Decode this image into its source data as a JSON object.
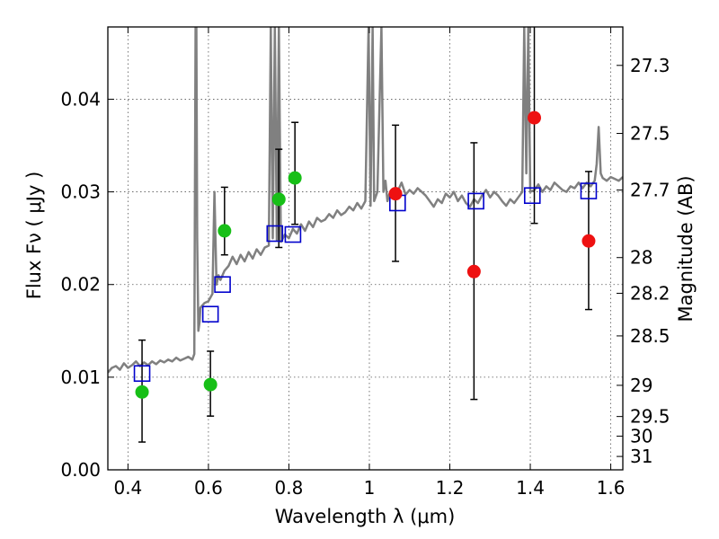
{
  "chart_data": {
    "type": "scatter",
    "xlabel": "Wavelength  λ (μm)",
    "ylabel": "Flux  Fν  ( μJy )",
    "ylabel_right": "Magnitude (AB)",
    "xlim": [
      0.35,
      1.63
    ],
    "ylim": [
      0.0,
      0.0478
    ],
    "x_ticks": [
      0.4,
      0.6,
      0.8,
      1.0,
      1.2,
      1.4,
      1.6
    ],
    "x_tick_labels": [
      "0.4",
      "0.6",
      "0.8",
      "1",
      "1.2",
      "1.4",
      "1.6"
    ],
    "y_ticks": [
      0.0,
      0.01,
      0.02,
      0.03,
      0.04
    ],
    "y_tick_labels": [
      "0.00",
      "0.01",
      "0.02",
      "0.03",
      "0.04"
    ],
    "mag_ticks": [
      27.3,
      27.5,
      27.7,
      28,
      28.2,
      28.5,
      29,
      29.5,
      30,
      31
    ],
    "mag_tick_labels": [
      "27.3",
      "27.5",
      "27.7",
      "28",
      "28.2",
      "28.5",
      "29",
      "29.5",
      "30",
      "31"
    ],
    "grid": true,
    "colors": {
      "model": "#808080",
      "model_photometry": "#0000cc",
      "green_points": "#17bf17",
      "red_points": "#ee1111",
      "errorbar": "#000000",
      "grid": "#555555"
    },
    "series": [
      {
        "style": "line",
        "color": "#808080",
        "x": [
          0.35,
          0.36,
          0.37,
          0.38,
          0.39,
          0.4,
          0.41,
          0.42,
          0.43,
          0.44,
          0.45,
          0.46,
          0.47,
          0.48,
          0.49,
          0.5,
          0.51,
          0.52,
          0.53,
          0.54,
          0.55,
          0.56,
          0.565,
          0.568,
          0.57,
          0.572,
          0.575,
          0.578,
          0.58,
          0.59,
          0.6,
          0.61,
          0.615,
          0.62,
          0.625,
          0.63,
          0.64,
          0.65,
          0.66,
          0.67,
          0.68,
          0.69,
          0.7,
          0.71,
          0.72,
          0.73,
          0.74,
          0.75,
          0.755,
          0.76,
          0.765,
          0.77,
          0.775,
          0.78,
          0.79,
          0.8,
          0.81,
          0.82,
          0.83,
          0.84,
          0.85,
          0.86,
          0.87,
          0.88,
          0.89,
          0.9,
          0.91,
          0.92,
          0.93,
          0.94,
          0.95,
          0.96,
          0.97,
          0.98,
          0.99,
          0.998,
          1.003,
          1.008,
          1.012,
          1.02,
          1.03,
          1.035,
          1.04,
          1.045,
          1.05,
          1.06,
          1.07,
          1.08,
          1.09,
          1.1,
          1.11,
          1.12,
          1.13,
          1.14,
          1.15,
          1.16,
          1.17,
          1.18,
          1.19,
          1.2,
          1.21,
          1.22,
          1.23,
          1.24,
          1.25,
          1.26,
          1.27,
          1.28,
          1.29,
          1.3,
          1.31,
          1.32,
          1.33,
          1.34,
          1.35,
          1.36,
          1.37,
          1.38,
          1.385,
          1.39,
          1.395,
          1.4,
          1.41,
          1.42,
          1.43,
          1.44,
          1.45,
          1.46,
          1.47,
          1.48,
          1.49,
          1.5,
          1.51,
          1.52,
          1.53,
          1.54,
          1.55,
          1.56,
          1.565,
          1.57,
          1.575,
          1.58,
          1.59,
          1.6,
          1.61,
          1.62,
          1.63
        ],
        "y": [
          0.0105,
          0.011,
          0.0112,
          0.0108,
          0.0115,
          0.011,
          0.0113,
          0.0117,
          0.0112,
          0.0116,
          0.0113,
          0.0117,
          0.0114,
          0.0118,
          0.0116,
          0.0119,
          0.0117,
          0.0121,
          0.0118,
          0.012,
          0.0122,
          0.0119,
          0.0125,
          0.0478,
          0.0478,
          0.025,
          0.015,
          0.016,
          0.0175,
          0.018,
          0.0182,
          0.019,
          0.03,
          0.02,
          0.021,
          0.0205,
          0.0215,
          0.022,
          0.023,
          0.0222,
          0.0232,
          0.0225,
          0.0235,
          0.0228,
          0.0238,
          0.0232,
          0.024,
          0.0242,
          0.0478,
          0.025,
          0.0478,
          0.0248,
          0.0478,
          0.0246,
          0.0254,
          0.025,
          0.026,
          0.0255,
          0.0265,
          0.0258,
          0.0268,
          0.0262,
          0.0272,
          0.0268,
          0.027,
          0.0276,
          0.0272,
          0.028,
          0.0275,
          0.0278,
          0.0284,
          0.028,
          0.0288,
          0.0282,
          0.029,
          0.0478,
          0.0285,
          0.0478,
          0.029,
          0.03,
          0.0478,
          0.03,
          0.0312,
          0.029,
          0.0298,
          0.0294,
          0.03,
          0.031,
          0.0297,
          0.0302,
          0.0298,
          0.0304,
          0.03,
          0.0296,
          0.029,
          0.0284,
          0.0292,
          0.0288,
          0.0298,
          0.0294,
          0.03,
          0.029,
          0.0296,
          0.0288,
          0.0284,
          0.0292,
          0.0288,
          0.0296,
          0.0302,
          0.0294,
          0.03,
          0.0296,
          0.029,
          0.0285,
          0.0292,
          0.0288,
          0.0294,
          0.03,
          0.0478,
          0.032,
          0.0478,
          0.03,
          0.0302,
          0.0308,
          0.03,
          0.0306,
          0.0302,
          0.031,
          0.0306,
          0.0302,
          0.03,
          0.0306,
          0.0304,
          0.031,
          0.0304,
          0.031,
          0.0306,
          0.0312,
          0.033,
          0.037,
          0.032,
          0.0315,
          0.0312,
          0.0316,
          0.0314,
          0.0312,
          0.0316
        ]
      },
      {
        "style": "open-square",
        "color": "#0000cc",
        "x": [
          0.435,
          0.605,
          0.635,
          0.765,
          0.81,
          1.07,
          1.265,
          1.405,
          1.545
        ],
        "y": [
          0.0104,
          0.0168,
          0.02,
          0.0255,
          0.0254,
          0.0288,
          0.029,
          0.0296,
          0.0301
        ]
      },
      {
        "style": "dot",
        "color": "#17bf17",
        "x": [
          0.435,
          0.605,
          0.64,
          0.775,
          0.815
        ],
        "y": [
          0.0084,
          0.0092,
          0.0258,
          0.0292,
          0.0315
        ],
        "err_low": [
          0.003,
          0.0058,
          0.0232,
          0.024,
          0.0265
        ],
        "err_high": [
          0.014,
          0.0128,
          0.0305,
          0.0346,
          0.0375
        ]
      },
      {
        "style": "dot",
        "color": "#ee1111",
        "x": [
          1.065,
          1.26,
          1.41,
          1.545
        ],
        "y": [
          0.0298,
          0.0214,
          0.038,
          0.0247
        ],
        "err_low": [
          0.0225,
          0.0076,
          0.0266,
          0.0173
        ],
        "err_high": [
          0.0372,
          0.0353,
          0.0478,
          0.0322
        ]
      }
    ]
  }
}
